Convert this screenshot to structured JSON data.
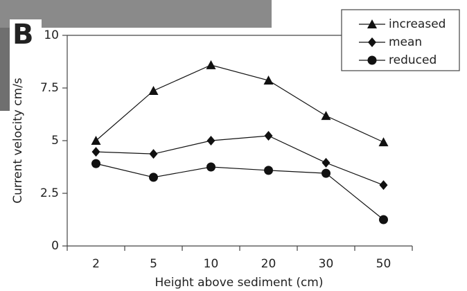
{
  "panel_label": "B",
  "chart_data": {
    "type": "line",
    "xlabel": "Height above sediment (cm)",
    "ylabel": "Current velocity cm/s",
    "categories": [
      "2",
      "5",
      "10",
      "20",
      "30",
      "50"
    ],
    "ylim": [
      0,
      10
    ],
    "yticks": [
      0,
      2.5,
      5,
      7.5,
      10
    ],
    "legend": "top-right",
    "series": [
      {
        "name": "increased",
        "color": "#111111",
        "marker": "triangle",
        "values": [
          5.0,
          7.37,
          8.59,
          7.86,
          6.18,
          4.93
        ]
      },
      {
        "name": "mean",
        "color": "#111111",
        "marker": "diamond",
        "values": [
          4.47,
          4.37,
          5.0,
          5.23,
          3.95,
          2.89
        ]
      },
      {
        "name": "reduced",
        "color": "#111111",
        "marker": "circle",
        "values": [
          3.91,
          3.26,
          3.75,
          3.59,
          3.45,
          1.25
        ]
      }
    ]
  }
}
